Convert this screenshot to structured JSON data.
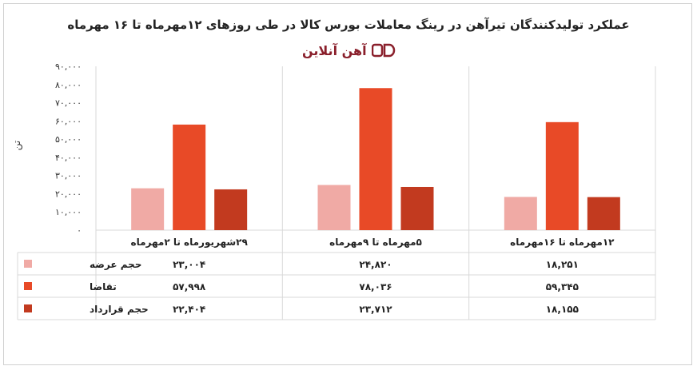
{
  "chart_data": {
    "type": "bar",
    "title": "عملکرد تولیدکنندگان تیرآهن در رینگ معاملات بورس کالا در طی روزهای ۱۲مهرماه تا ۱۶ مهرماه",
    "brand": "آهن آنلاین",
    "ylabel": "تن",
    "ylim": [
      0,
      90000
    ],
    "yticks": [
      "۰",
      "۱۰,۰۰۰",
      "۲۰,۰۰۰",
      "۳۰,۰۰۰",
      "۴۰,۰۰۰",
      "۵۰,۰۰۰",
      "۶۰,۰۰۰",
      "۷۰,۰۰۰",
      "۸۰,۰۰۰",
      "۹۰,۰۰۰"
    ],
    "categories": [
      "۲۹شهریورماه تا ۲مهرماه",
      "۵مهرماه تا ۹مهرماه",
      "۱۲مهرماه تا ۱۶مهرماه"
    ],
    "series": [
      {
        "name": "حجم عرضه",
        "color": "#f0aaa5",
        "values": [
          23004,
          24820,
          18251
        ],
        "labels": [
          "۲۳,۰۰۴",
          "۲۴,۸۲۰",
          "۱۸,۲۵۱"
        ]
      },
      {
        "name": "تقاضا",
        "color": "#e84a27",
        "values": [
          57998,
          78036,
          59345
        ],
        "labels": [
          "۵۷,۹۹۸",
          "۷۸,۰۳۶",
          "۵۹,۳۴۵"
        ]
      },
      {
        "name": "حجم قرارداد",
        "color": "#c23a1f",
        "values": [
          22404,
          23712,
          18155
        ],
        "labels": [
          "۲۲,۴۰۴",
          "۲۳,۷۱۲",
          "۱۸,۱۵۵"
        ]
      }
    ],
    "grid": "vertical-category-separators",
    "legend": "data-table-left"
  }
}
